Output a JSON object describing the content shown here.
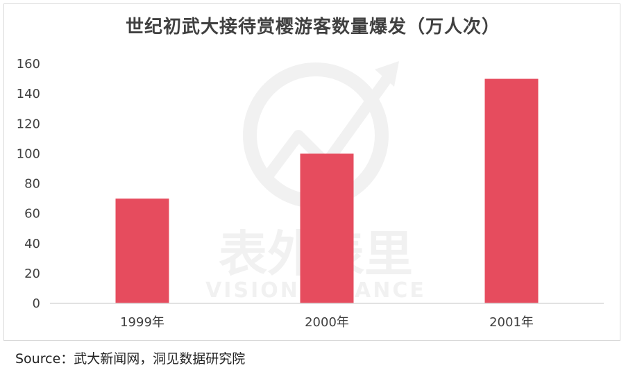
{
  "chart_data": {
    "type": "bar",
    "title": "世纪初武大接待赏樱游客数量爆发（万人次）",
    "categories": [
      "1999年",
      "2000年",
      "2001年"
    ],
    "values": [
      70,
      100,
      150
    ],
    "ylim": [
      0,
      160
    ],
    "yticks": [
      0,
      20,
      40,
      60,
      80,
      100,
      120,
      140,
      160
    ],
    "grid": false,
    "bar_color": "#e64c5e",
    "axis_color": "#d9d9d9",
    "tick_label_color": "#404040"
  },
  "watermark": {
    "cn": "表外表里",
    "en": "VISION FINANCE"
  },
  "source": "Source：武大新闻网，洞见数据研究院"
}
